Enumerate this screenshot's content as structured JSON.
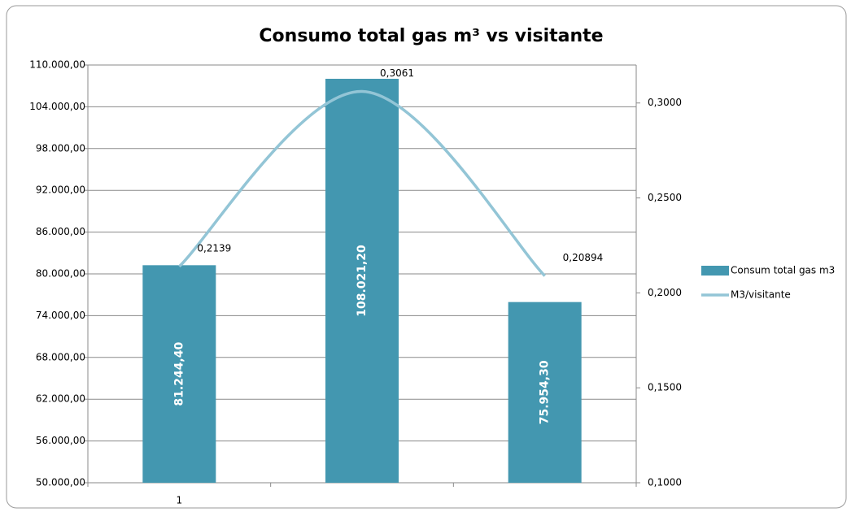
{
  "chart_data": {
    "type": "bar-line",
    "title": "Consumo total gas m³ vs visitante",
    "categories": [
      "1",
      null,
      null
    ],
    "series": [
      {
        "name": "Consum total gas m3",
        "type": "bar",
        "color": "#4397b0",
        "values": [
          81244.4,
          108021.2,
          75954.3
        ],
        "value_labels": [
          "81.244,40",
          "108.021,20",
          "75.954,30"
        ]
      },
      {
        "name": "M3/visitante",
        "type": "line",
        "axis": "y2",
        "color": "#93c5d6",
        "values": [
          0.2139,
          0.3061,
          0.20894
        ],
        "value_labels": [
          "0,2139",
          "0,3061",
          "0,20894"
        ]
      }
    ],
    "ylim": [
      50000,
      110000
    ],
    "yticks": [
      {
        "value": 50000,
        "label": "50.000,00"
      },
      {
        "value": 56000,
        "label": "56.000,00"
      },
      {
        "value": 62000,
        "label": "62.000,00"
      },
      {
        "value": 68000,
        "label": "68.000,00"
      },
      {
        "value": 74000,
        "label": "74.000,00"
      },
      {
        "value": 80000,
        "label": "80.000,00"
      },
      {
        "value": 86000,
        "label": "86.000,00"
      },
      {
        "value": 92000,
        "label": "92.000,00"
      },
      {
        "value": 98000,
        "label": "98.000,00"
      },
      {
        "value": 104000,
        "label": "104.000,00"
      },
      {
        "value": 110000,
        "label": "110.000,00"
      }
    ],
    "y2lim": [
      0.1,
      0.32
    ],
    "y2ticks": [
      {
        "value": 0.1,
        "label": "0,1000"
      },
      {
        "value": 0.15,
        "label": "0,1500"
      },
      {
        "value": 0.2,
        "label": "0,2000"
      },
      {
        "value": 0.25,
        "label": "0,2500"
      },
      {
        "value": 0.3,
        "label": "0,3000"
      }
    ],
    "grid": true,
    "legend": "right"
  }
}
